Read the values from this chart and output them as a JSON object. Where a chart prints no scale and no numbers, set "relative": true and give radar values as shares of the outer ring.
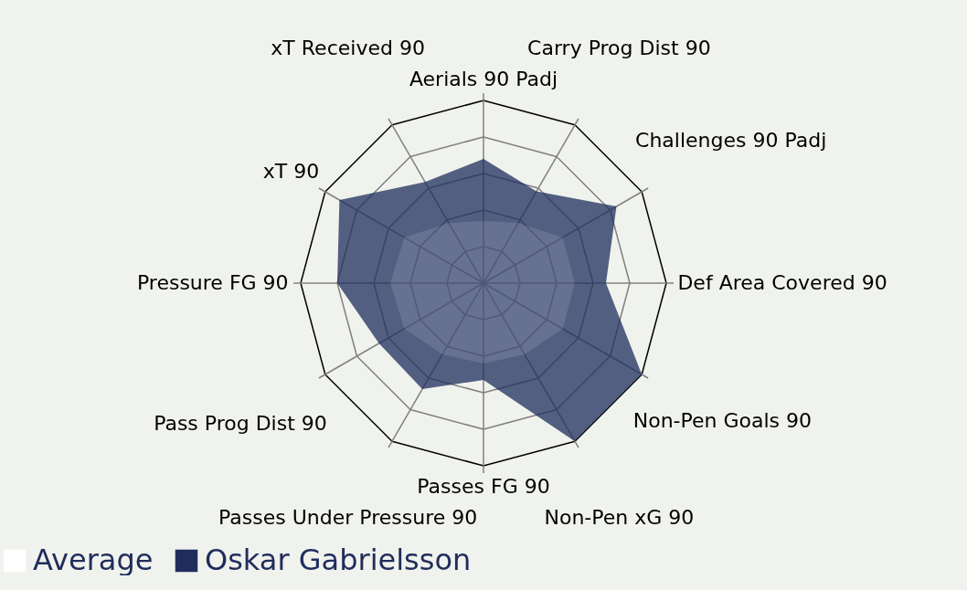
{
  "chart_data": {
    "type": "radar",
    "relative": true,
    "grid": true,
    "legend": "bottom",
    "categories": [
      "Aerials 90 Padj",
      "Carry Prog Dist 90",
      "Challenges 90 Padj",
      "Def Area Covered 90",
      "Non-Pen Goals 90",
      "Non-Pen xG 90",
      "Passes FG 90",
      "Passes Under Pressure 90",
      "Pass Prog Dist 90",
      "Pressure FG 90",
      "xT 90",
      "xT Received 90"
    ],
    "series": [
      {
        "name": "Average",
        "color": "#ffffff",
        "values": [
          0.34,
          0.38,
          0.5,
          0.5,
          0.5,
          0.45,
          0.44,
          0.45,
          0.5,
          0.51,
          0.5,
          0.38
        ]
      },
      {
        "name": "Oskar Gabrielsson",
        "color": "#1f2d5c",
        "values": [
          0.68,
          0.58,
          0.84,
          0.67,
          1.0,
          1.0,
          0.53,
          0.67,
          0.66,
          0.8,
          0.91,
          0.64
        ]
      }
    ]
  }
}
